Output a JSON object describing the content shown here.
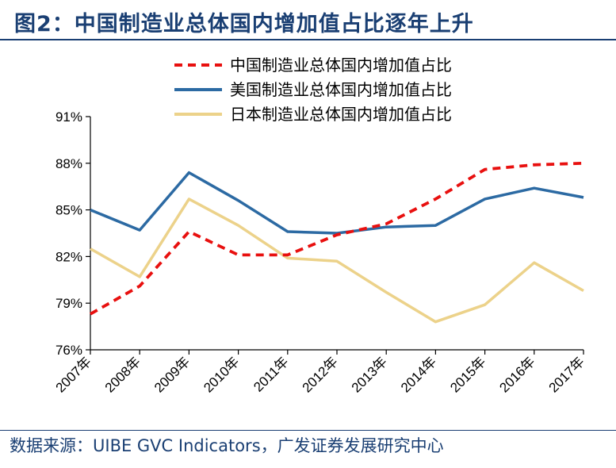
{
  "header": {
    "title": "图2：中国制造业总体国内增加值占比逐年上升"
  },
  "footer": {
    "source": "数据来源：UIBE GVC Indicators，广发证券发展研究中心"
  },
  "colors": {
    "china": "#e8100f",
    "usa": "#2c6aa3",
    "japan": "#ecd28a",
    "axis": "#000000",
    "text": "#1a3f73"
  },
  "chart_data": {
    "type": "line",
    "title": "",
    "xlabel": "",
    "ylabel": "",
    "categories": [
      "2007年",
      "2008年",
      "2009年",
      "2010年",
      "2011年",
      "2012年",
      "2013年",
      "2014年",
      "2015年",
      "2016年",
      "2017年"
    ],
    "yticks": [
      "76%",
      "79%",
      "82%",
      "85%",
      "88%",
      "91%"
    ],
    "ylim": [
      76,
      91
    ],
    "grid": false,
    "legend": "top-right",
    "series": [
      {
        "name": "中国制造业总体国内增加值占比",
        "style": "dashed",
        "color": "#e8100f",
        "values": [
          78.3,
          80.1,
          83.6,
          82.1,
          82.1,
          83.4,
          84.1,
          85.7,
          87.6,
          87.9,
          88.0
        ]
      },
      {
        "name": "美国制造业总体国内增加值占比",
        "style": "solid",
        "color": "#2c6aa3",
        "values": [
          85.0,
          83.7,
          87.4,
          85.6,
          83.6,
          83.5,
          83.9,
          84.0,
          85.7,
          86.4,
          85.8
        ]
      },
      {
        "name": "日本制造业总体国内增加值占比",
        "style": "solid",
        "color": "#ecd28a",
        "values": [
          82.5,
          80.7,
          85.7,
          84.0,
          81.9,
          81.7,
          79.7,
          77.8,
          78.9,
          81.6,
          79.8
        ]
      }
    ]
  }
}
